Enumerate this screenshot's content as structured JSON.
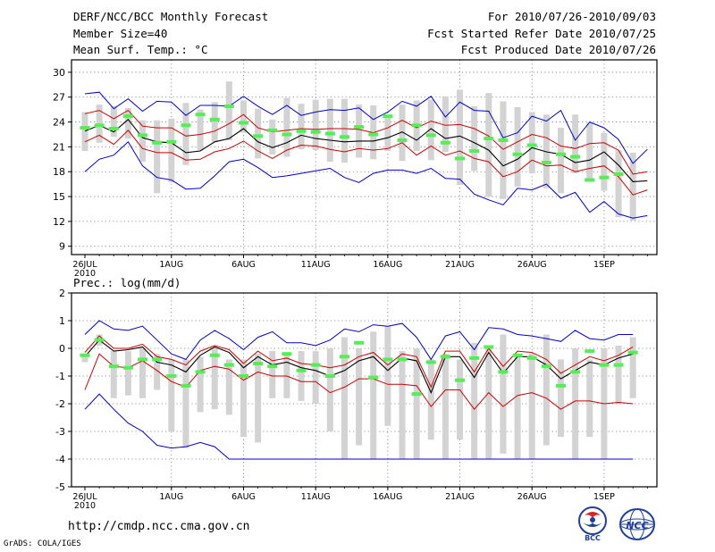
{
  "header": {
    "title": "DERF/NCC/BCC Monthly Forecast",
    "member_size": "Member Size=40",
    "variable_temp": "Mean Surf. Temp.: °C",
    "forecast_period": "For 2010/07/26-2010/09/03",
    "started_refer_date": "Fcst Started Refer Date 2010/07/25",
    "produced_date": "Fcst Produced Date 2010/07/26"
  },
  "footer": {
    "url": "http://cmdp.ncc.cma.gov.cn",
    "credit": "GrADS: COLA/IGES",
    "logo_bcc_text": "BCC",
    "logo_ncc_text": "NCC"
  },
  "colors": {
    "box": "#d3d3d3",
    "ensemble_mean": "#000000",
    "spread_bounds": "#cc0000",
    "extreme_bounds": "#0000cc",
    "marker": "#55ee55",
    "grid": "#777777"
  },
  "chart_data": [
    {
      "type": "box",
      "title": "Mean Surf. Temp.: °C",
      "xlabel": "",
      "ylabel": "",
      "xlim": [
        0,
        39.6
      ],
      "ylim": [
        8,
        31.5
      ],
      "yticks": [
        9,
        12,
        15,
        18,
        21,
        24,
        27,
        30
      ],
      "ytick_labels": [
        "9",
        "12",
        "15",
        "18",
        "21",
        "24",
        "27",
        "30"
      ],
      "x_tick_positions": [
        0,
        6,
        11,
        16,
        21,
        26,
        31,
        36
      ],
      "x_tick_labels": [
        "26JUL",
        "1AUG",
        "6AUG",
        "11AUG",
        "16AUG",
        "21AUG",
        "26AUG",
        "1SEP"
      ],
      "x_year_label": "2010",
      "grid": true,
      "series": [
        {
          "name": "box_low",
          "values": [
            20.5,
            21.5,
            22.2,
            22.0,
            19.2,
            15.4,
            16.7,
            18.8,
            20.6,
            21.6,
            21.8,
            22.7,
            19.6,
            20.1,
            19.8,
            20.7,
            20.6,
            19.2,
            19.1,
            19.7,
            19.5,
            20.5,
            19.3,
            20.5,
            19.4,
            20.4,
            16.4,
            18.1,
            15.0,
            14.7,
            16.2,
            17.8,
            16.0,
            15.4,
            17.8,
            17.0,
            15.7,
            12.5,
            12.1
          ]
        },
        {
          "name": "box_high",
          "values": [
            25.2,
            26.1,
            25.9,
            25.7,
            24.2,
            24.2,
            24.4,
            26.3,
            25.5,
            26.4,
            28.9,
            26.6,
            25.6,
            24.3,
            26.9,
            26.2,
            26.7,
            26.8,
            26.8,
            26.1,
            26.0,
            24.6,
            26.1,
            26.6,
            26.7,
            27.1,
            27.9,
            25.9,
            27.5,
            26.5,
            25.8,
            25.2,
            24.9,
            23.3,
            24.9,
            23.9,
            22.7,
            20.6,
            20.3
          ]
        },
        {
          "name": "obs_marker",
          "values": [
            23.3,
            23.6,
            23.2,
            24.7,
            22.4,
            21.5,
            21.6,
            23.6,
            24.9,
            24.3,
            25.9,
            23.9,
            22.3,
            23.0,
            22.5,
            22.9,
            22.8,
            22.6,
            22.2,
            23.4,
            22.5,
            24.7,
            21.8,
            23.6,
            22.4,
            21.5,
            19.6,
            20.5,
            22.0,
            21.8,
            20.1,
            21.2,
            19.1,
            20.1,
            19.8,
            17.0,
            17.3,
            17.7
          ]
        },
        {
          "name": "ensemble_mean",
          "values": [
            22.9,
            23.6,
            22.8,
            24.3,
            22.1,
            21.6,
            21.5,
            20.3,
            20.5,
            21.6,
            22.0,
            23.2,
            21.6,
            20.9,
            21.5,
            22.4,
            22.0,
            21.8,
            21.6,
            21.7,
            21.7,
            22.1,
            22.8,
            21.8,
            23.2,
            22.0,
            22.3,
            21.5,
            20.6,
            18.7,
            19.5,
            20.9,
            20.4,
            20.1,
            19.1,
            19.4,
            20.4,
            18.8,
            16.8,
            16.9
          ]
        },
        {
          "name": "upper_spread",
          "values": [
            25.0,
            25.4,
            24.4,
            25.4,
            23.5,
            23.3,
            23.3,
            22.3,
            22.5,
            22.9,
            23.8,
            24.9,
            23.3,
            22.8,
            23.0,
            23.2,
            23.1,
            23.2,
            23.2,
            23.1,
            22.7,
            23.3,
            24.2,
            23.3,
            24.1,
            23.6,
            23.7,
            23.2,
            22.3,
            20.7,
            21.6,
            22.5,
            22.1,
            21.1,
            20.8,
            21.4,
            21.5,
            20.6,
            17.7,
            18.0
          ]
        },
        {
          "name": "lower_spread",
          "values": [
            21.6,
            22.4,
            21.3,
            23.0,
            20.8,
            20.3,
            20.3,
            19.4,
            19.5,
            20.4,
            20.8,
            21.7,
            20.5,
            19.6,
            20.6,
            21.2,
            21.1,
            20.7,
            20.4,
            20.8,
            20.6,
            20.8,
            21.5,
            20.0,
            21.1,
            20.0,
            20.5,
            19.6,
            19.2,
            17.4,
            18.0,
            19.4,
            18.7,
            18.8,
            18.0,
            18.4,
            18.7,
            17.4,
            15.2,
            15.8
          ]
        },
        {
          "name": "max",
          "values": [
            27.4,
            27.6,
            25.6,
            26.8,
            25.3,
            26.5,
            26.4,
            24.8,
            26.0,
            26.0,
            25.9,
            27.1,
            25.9,
            24.9,
            26.0,
            24.8,
            25.2,
            25.5,
            25.4,
            25.7,
            24.3,
            25.2,
            26.5,
            25.9,
            27.1,
            24.6,
            26.4,
            25.4,
            25.3,
            22.1,
            22.7,
            24.7,
            24.1,
            25.4,
            21.8,
            24.0,
            23.3,
            21.9,
            19.0,
            20.7
          ]
        },
        {
          "name": "min",
          "values": [
            18.0,
            19.5,
            20.0,
            21.6,
            18.7,
            17.3,
            17.0,
            15.9,
            16.0,
            17.5,
            19.2,
            19.5,
            18.5,
            17.3,
            17.5,
            17.8,
            18.1,
            18.4,
            17.3,
            16.7,
            17.8,
            18.2,
            18.2,
            17.8,
            18.4,
            17.2,
            17.1,
            15.3,
            14.6,
            14.0,
            16.0,
            15.8,
            16.5,
            14.8,
            15.5,
            13.1,
            14.4,
            12.9,
            12.4,
            12.7
          ]
        }
      ]
    },
    {
      "type": "box",
      "title": "Prec.: log(mm/d)",
      "xlabel": "",
      "ylabel": "",
      "xlim": [
        0,
        39.6
      ],
      "ylim": [
        -5,
        2
      ],
      "yticks": [
        -5,
        -4,
        -3,
        -2,
        -1,
        0,
        1,
        2
      ],
      "ytick_labels": [
        "-5",
        "-4",
        "-3",
        "-2",
        "-1",
        "0",
        "1",
        "2"
      ],
      "x_tick_positions": [
        0,
        6,
        11,
        16,
        21,
        26,
        31,
        36
      ],
      "x_tick_labels": [
        "26JUL",
        "1AUG",
        "6AUG",
        "11AUG",
        "16AUG",
        "21AUG",
        "26AUG",
        "1SEP"
      ],
      "x_year_label": "2010",
      "grid": true,
      "series": [
        {
          "name": "box_low",
          "values": [
            -0.5,
            0.1,
            -1.8,
            -1.7,
            -1.8,
            -1.5,
            -3.0,
            -3.6,
            -2.3,
            -2.2,
            -2.4,
            -3.2,
            -3.4,
            -1.8,
            -1.8,
            -1.9,
            -2.0,
            -3.0,
            -4.0,
            -3.5,
            -4.0,
            -2.8,
            -4.0,
            -4.0,
            -3.3,
            -4.0,
            -3.3,
            -4.0,
            -4.0,
            -3.8,
            -4.0,
            -4.0,
            -3.5,
            -3.2,
            -4.0,
            -3.2,
            -4.0,
            -2.0,
            -1.8
          ]
        },
        {
          "name": "box_high",
          "values": [
            -0.2,
            0.5,
            -0.1,
            -0.1,
            0.0,
            -0.2,
            -0.4,
            -0.4,
            -0.3,
            0.0,
            -0.4,
            -0.4,
            -0.2,
            -0.1,
            -0.2,
            -0.1,
            -0.1,
            0.0,
            0.4,
            0.0,
            0.6,
            0.8,
            -0.1,
            0.0,
            -0.4,
            -0.2,
            -0.4,
            0.2,
            0.0,
            0.5,
            -0.2,
            -0.2,
            0.5,
            -0.4,
            0.0,
            -0.4,
            0.0,
            0.1,
            0.4
          ]
        },
        {
          "name": "obs_marker",
          "values": [
            -0.25,
            0.3,
            -0.65,
            -0.7,
            -0.4,
            -0.4,
            -1.0,
            -1.35,
            -0.85,
            -0.25,
            -0.6,
            -1.0,
            -0.55,
            -0.65,
            -0.2,
            -0.8,
            -0.6,
            -1.0,
            -0.3,
            0.2,
            -1.05,
            -0.4,
            -0.4,
            -1.65,
            -0.5,
            -0.3,
            -1.15,
            -0.35,
            0.05,
            -0.85,
            -0.25,
            -0.35,
            -0.65,
            -1.35,
            -0.85,
            -0.1,
            -0.6,
            -0.6,
            -0.15
          ]
        },
        {
          "name": "ensemble_mean",
          "values": [
            -0.3,
            0.3,
            -0.1,
            -0.05,
            0.05,
            -0.5,
            -0.6,
            -0.85,
            -0.25,
            0.05,
            -0.15,
            -0.7,
            -0.3,
            -0.6,
            -0.5,
            -0.7,
            -0.8,
            -1.0,
            -0.8,
            -0.45,
            -0.3,
            -0.8,
            -0.35,
            -0.45,
            -1.6,
            -0.3,
            -0.3,
            -1.05,
            -0.15,
            -0.9,
            -0.3,
            -0.3,
            -0.6,
            -1.1,
            -0.8,
            -0.5,
            -0.6,
            -0.35,
            -0.2
          ]
        },
        {
          "name": "upper_spread",
          "values": [
            -0.15,
            0.45,
            0.0,
            0.0,
            0.15,
            -0.3,
            -0.4,
            -0.6,
            -0.1,
            0.1,
            -0.05,
            -0.55,
            -0.1,
            -0.45,
            -0.35,
            -0.55,
            -0.6,
            -0.7,
            -0.6,
            -0.3,
            -0.15,
            -0.6,
            -0.2,
            -0.3,
            -1.4,
            -0.1,
            -0.1,
            -0.85,
            0.0,
            -0.65,
            -0.1,
            -0.15,
            -0.4,
            -0.9,
            -0.6,
            -0.3,
            -0.45,
            -0.25,
            0.05
          ]
        },
        {
          "name": "lower_spread",
          "values": [
            -1.5,
            -0.2,
            -0.65,
            -0.7,
            -0.45,
            -0.8,
            -1.2,
            -1.4,
            -0.8,
            -0.65,
            -0.75,
            -1.15,
            -0.85,
            -1.0,
            -1.0,
            -1.2,
            -1.2,
            -1.6,
            -1.4,
            -1.1,
            -1.1,
            -1.3,
            -1.3,
            -1.35,
            -2.1,
            -1.5,
            -1.5,
            -2.2,
            -1.6,
            -2.1,
            -1.7,
            -1.6,
            -1.8,
            -2.2,
            -1.9,
            -1.9,
            -2.0,
            -1.95,
            -2.0
          ]
        },
        {
          "name": "max",
          "values": [
            0.5,
            1.0,
            0.7,
            0.65,
            0.8,
            0.3,
            -0.2,
            -0.4,
            0.3,
            0.65,
            0.35,
            -0.05,
            0.4,
            0.6,
            0.2,
            0.2,
            0.1,
            0.3,
            0.7,
            0.6,
            0.85,
            0.8,
            0.9,
            0.4,
            -0.4,
            0.45,
            0.6,
            -0.05,
            0.75,
            0.7,
            0.5,
            0.45,
            0.35,
            0.25,
            0.65,
            0.35,
            0.3,
            0.5,
            0.5
          ]
        },
        {
          "name": "min",
          "values": [
            -2.2,
            -1.65,
            -2.2,
            -2.7,
            -3.0,
            -3.5,
            -3.6,
            -3.55,
            -3.4,
            -3.55,
            -4.0,
            -4.0,
            -4.0,
            -4.0,
            -4.0,
            -4.0,
            -4.0,
            -4.0,
            -4.0,
            -4.0,
            -4.0,
            -4.0,
            -4.0,
            -4.0,
            -4.0,
            -4.0,
            -4.0,
            -4.0,
            -4.0,
            -4.0,
            -4.0,
            -4.0,
            -4.0,
            -4.0,
            -4.0,
            -4.0,
            -4.0,
            -4.0,
            -4.0
          ]
        }
      ]
    }
  ]
}
